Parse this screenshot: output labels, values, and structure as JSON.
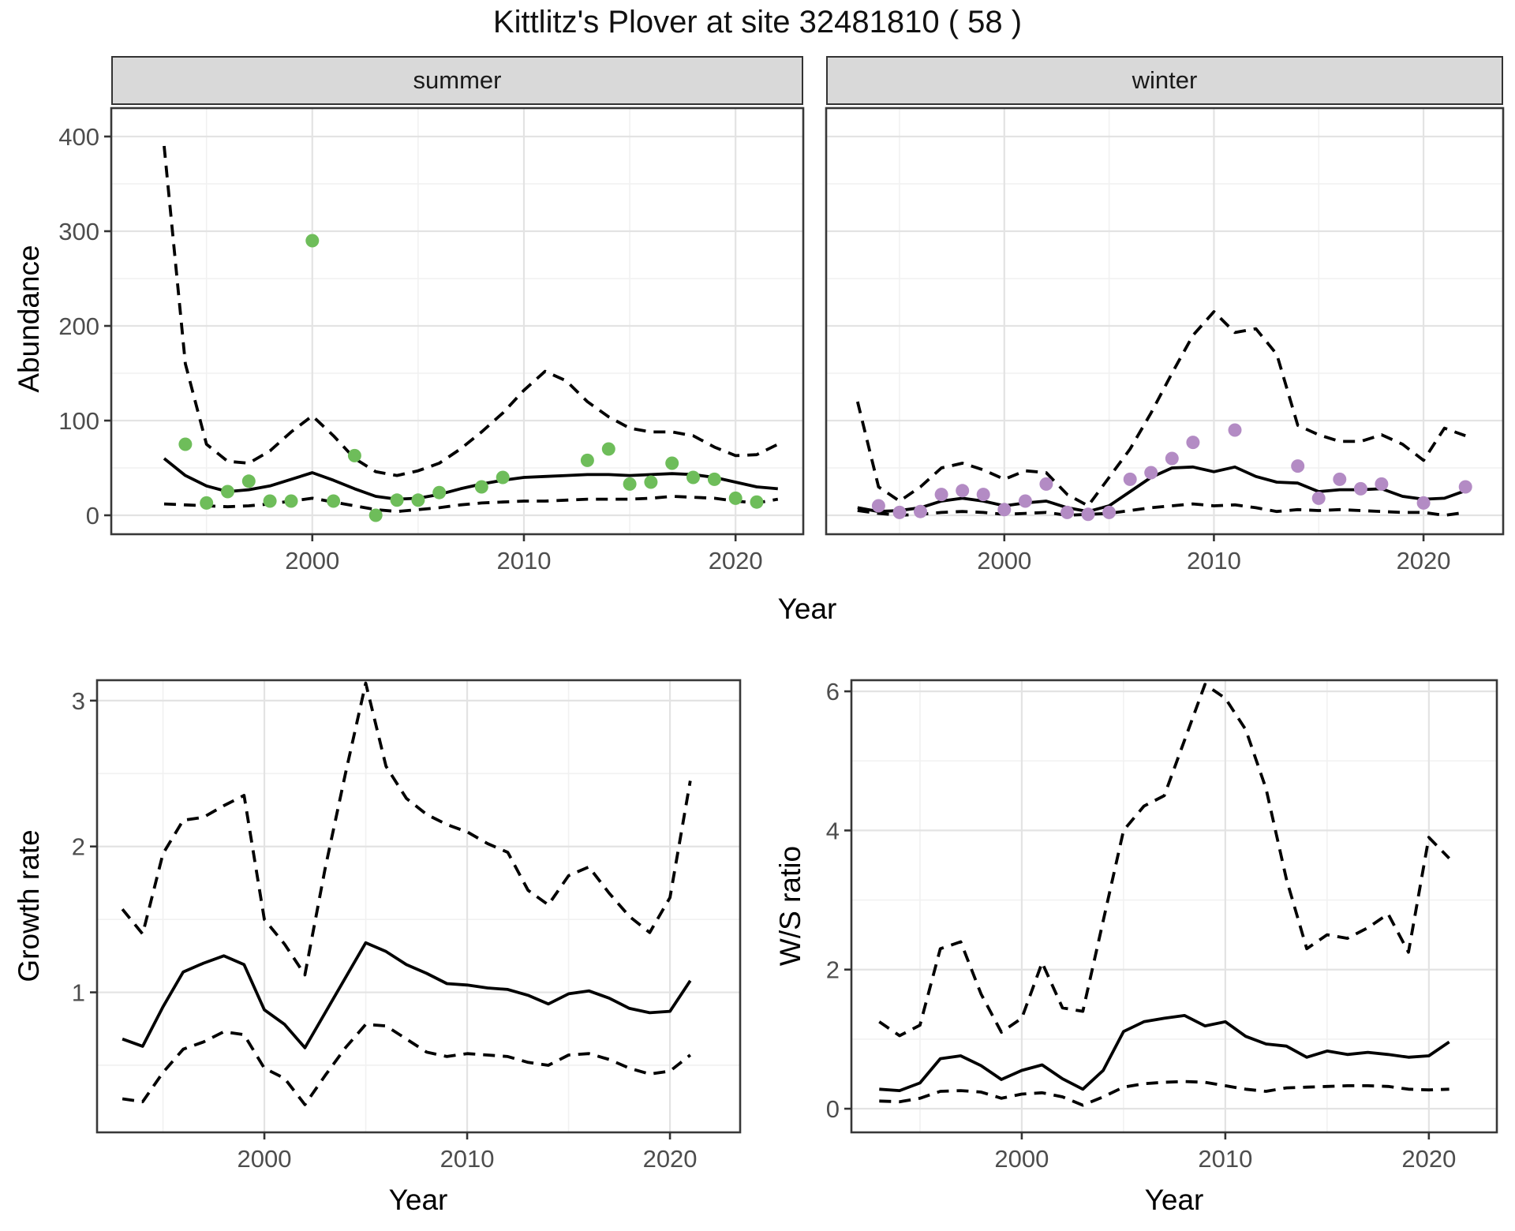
{
  "title": "Kittlitz's Plover at site 32481810 ( 58 )",
  "facets": {
    "summer": "summer",
    "winter": "winter"
  },
  "axis_titles": {
    "abundance": "Abundance",
    "year_top": "Year",
    "growth_rate": "Growth rate",
    "ws_ratio": "W/S ratio",
    "year_bottom_left": "Year",
    "year_bottom_right": "Year"
  },
  "colors": {
    "summer_point": "#6ebd5a",
    "winter_point": "#b38bc4",
    "line": "#000000",
    "strip_bg": "#d9d9d9",
    "panel_border": "#383838",
    "grid_major": "#e3e3e3",
    "grid_minor": "#f1f1f1",
    "tick_label": "#4d4d4d",
    "tick_mark": "#333333"
  },
  "chart_data": [
    {
      "id": "abundance-summer",
      "type": "line",
      "facet_label": "summer",
      "xlabel": "Year",
      "ylabel": "Abundance",
      "xlim": [
        1990.5,
        2023.2
      ],
      "ylim": [
        -20,
        430
      ],
      "grid": true,
      "legend_position": "none",
      "xticks": {
        "values": [
          2000,
          2010,
          2020
        ],
        "labels": [
          "2000",
          "2010",
          "2020"
        ]
      },
      "yticks": {
        "values": [
          0,
          100,
          200,
          300,
          400
        ],
        "labels": [
          "0",
          "100",
          "200",
          "300",
          "400"
        ]
      },
      "xminor": [
        1995,
        2005,
        2015
      ],
      "yminor": [
        50,
        150,
        250,
        350
      ],
      "years": [
        1993,
        1994,
        1995,
        1996,
        1997,
        1998,
        1999,
        2000,
        2001,
        2002,
        2003,
        2004,
        2005,
        2006,
        2007,
        2008,
        2009,
        2010,
        2011,
        2012,
        2013,
        2014,
        2015,
        2016,
        2017,
        2018,
        2019,
        2020,
        2021,
        2022
      ],
      "series": [
        {
          "name": "upper-ci",
          "style": "dashed",
          "values": [
            390,
            160,
            75,
            57,
            55,
            68,
            88,
            105,
            84,
            60,
            46,
            42,
            47,
            55,
            70,
            88,
            108,
            132,
            152,
            142,
            120,
            104,
            92,
            88,
            88,
            84,
            72,
            63,
            64,
            75
          ]
        },
        {
          "name": "lower-ci",
          "style": "dashed",
          "values": [
            12,
            11,
            10,
            9,
            10,
            12,
            15,
            18,
            14,
            10,
            6,
            4,
            6,
            8,
            11,
            13,
            14,
            15,
            15,
            16,
            17,
            17,
            17,
            18,
            20,
            19,
            18,
            15,
            13,
            17
          ]
        },
        {
          "name": "mean",
          "style": "solid",
          "values": [
            60,
            42,
            31,
            25,
            27,
            31,
            38,
            45,
            37,
            28,
            20,
            17,
            18,
            22,
            28,
            33,
            37,
            40,
            41,
            42,
            43,
            43,
            42,
            43,
            44,
            43,
            40,
            35,
            30,
            28
          ]
        }
      ],
      "points": {
        "name": "summer-observations",
        "color_key": "summer_point",
        "data": [
          [
            1994,
            75
          ],
          [
            1995,
            13
          ],
          [
            1996,
            25
          ],
          [
            1997,
            36
          ],
          [
            1998,
            15
          ],
          [
            1999,
            15
          ],
          [
            2000,
            290
          ],
          [
            2001,
            15
          ],
          [
            2002,
            63
          ],
          [
            2003,
            0
          ],
          [
            2004,
            16
          ],
          [
            2005,
            16
          ],
          [
            2006,
            24
          ],
          [
            2008,
            30
          ],
          [
            2009,
            40
          ],
          [
            2013,
            58
          ],
          [
            2014,
            70
          ],
          [
            2015,
            33
          ],
          [
            2016,
            35
          ],
          [
            2017,
            55
          ],
          [
            2018,
            40
          ],
          [
            2019,
            38
          ],
          [
            2020,
            18
          ],
          [
            2021,
            14
          ]
        ]
      }
    },
    {
      "id": "abundance-winter",
      "type": "line",
      "facet_label": "winter",
      "xlabel": "Year",
      "ylabel": "Abundance",
      "xlim": [
        1991.5,
        2023.8
      ],
      "ylim": [
        -20,
        430
      ],
      "grid": true,
      "legend_position": "none",
      "xticks": {
        "values": [
          2000,
          2010,
          2020
        ],
        "labels": [
          "2000",
          "2010",
          "2020"
        ]
      },
      "yticks": {
        "values": [
          0,
          100,
          200,
          300,
          400
        ],
        "labels": [
          "0",
          "100",
          "200",
          "300",
          "400"
        ],
        "hidden": true
      },
      "xminor": [
        1995,
        2005,
        2015
      ],
      "yminor": [
        50,
        150,
        250,
        350
      ],
      "years": [
        1993,
        1994,
        1995,
        1996,
        1997,
        1998,
        1999,
        2000,
        2001,
        2002,
        2003,
        2004,
        2005,
        2006,
        2007,
        2008,
        2009,
        2010,
        2011,
        2012,
        2013,
        2014,
        2015,
        2016,
        2017,
        2018,
        2019,
        2020,
        2021,
        2022
      ],
      "series": [
        {
          "name": "upper-ci",
          "style": "dashed",
          "values": [
            120,
            30,
            15,
            30,
            50,
            55,
            48,
            38,
            47,
            45,
            22,
            10,
            40,
            70,
            108,
            150,
            190,
            215,
            193,
            197,
            170,
            95,
            85,
            78,
            78,
            85,
            75,
            58,
            92,
            84
          ]
        },
        {
          "name": "lower-ci",
          "style": "dashed",
          "values": [
            5,
            2,
            0,
            1,
            3,
            4,
            3,
            1,
            2,
            3,
            0,
            1,
            2,
            5,
            8,
            10,
            12,
            10,
            11,
            8,
            4,
            6,
            5,
            6,
            5,
            4,
            3,
            3,
            0,
            3
          ]
        },
        {
          "name": "mean",
          "style": "solid",
          "values": [
            8,
            4,
            5,
            8,
            15,
            18,
            15,
            10,
            13,
            15,
            8,
            4,
            10,
            25,
            40,
            50,
            51,
            46,
            51,
            41,
            35,
            34,
            25,
            27,
            27,
            28,
            20,
            17,
            18,
            26
          ]
        }
      ],
      "points": {
        "name": "winter-observations",
        "color_key": "winter_point",
        "data": [
          [
            1994,
            10
          ],
          [
            1995,
            3
          ],
          [
            1996,
            4
          ],
          [
            1997,
            22
          ],
          [
            1998,
            26
          ],
          [
            1999,
            22
          ],
          [
            2000,
            6
          ],
          [
            2001,
            15
          ],
          [
            2002,
            33
          ],
          [
            2003,
            3
          ],
          [
            2004,
            1
          ],
          [
            2005,
            3
          ],
          [
            2006,
            38
          ],
          [
            2007,
            45
          ],
          [
            2008,
            60
          ],
          [
            2009,
            77
          ],
          [
            2011,
            90
          ],
          [
            2014,
            52
          ],
          [
            2015,
            18
          ],
          [
            2016,
            38
          ],
          [
            2017,
            28
          ],
          [
            2018,
            33
          ],
          [
            2020,
            13
          ],
          [
            2022,
            30
          ]
        ]
      }
    },
    {
      "id": "growth-rate",
      "type": "line",
      "xlabel": "Year",
      "ylabel": "Growth rate",
      "xlim": [
        1991.75,
        2023.46
      ],
      "ylim": [
        0.04,
        3.14
      ],
      "grid": true,
      "legend_position": "none",
      "xticks": {
        "values": [
          2000,
          2010,
          2020
        ],
        "labels": [
          "2000",
          "2010",
          "2020"
        ]
      },
      "yticks": {
        "values": [
          1,
          2,
          3
        ],
        "labels": [
          "1",
          "2",
          "3"
        ]
      },
      "xminor": [
        1995,
        2005,
        2015
      ],
      "yminor": [
        0.5,
        1.5,
        2.5
      ],
      "years": [
        1993,
        1994,
        1995,
        1996,
        1997,
        1998,
        1999,
        2000,
        2001,
        2002,
        2003,
        2004,
        2005,
        2006,
        2007,
        2008,
        2009,
        2010,
        2011,
        2012,
        2013,
        2014,
        2015,
        2016,
        2017,
        2018,
        2019,
        2020,
        2021
      ],
      "series": [
        {
          "name": "upper-ci",
          "style": "dashed",
          "values": [
            1.57,
            1.4,
            1.95,
            2.18,
            2.2,
            2.28,
            2.35,
            1.5,
            1.33,
            1.12,
            1.85,
            2.5,
            3.12,
            2.55,
            2.33,
            2.22,
            2.15,
            2.1,
            2.02,
            1.96,
            1.7,
            1.6,
            1.8,
            1.86,
            1.68,
            1.52,
            1.41,
            1.65,
            2.45
          ]
        },
        {
          "name": "lower-ci",
          "style": "dashed",
          "values": [
            0.27,
            0.25,
            0.45,
            0.61,
            0.66,
            0.73,
            0.71,
            0.48,
            0.41,
            0.23,
            0.43,
            0.62,
            0.78,
            0.77,
            0.68,
            0.59,
            0.56,
            0.58,
            0.57,
            0.56,
            0.52,
            0.5,
            0.57,
            0.58,
            0.54,
            0.48,
            0.44,
            0.46,
            0.57
          ]
        },
        {
          "name": "mean",
          "style": "solid",
          "values": [
            0.68,
            0.63,
            0.9,
            1.14,
            1.2,
            1.25,
            1.19,
            0.88,
            0.78,
            0.62,
            0.86,
            1.1,
            1.34,
            1.28,
            1.19,
            1.13,
            1.06,
            1.05,
            1.03,
            1.02,
            0.98,
            0.92,
            0.99,
            1.01,
            0.96,
            0.89,
            0.86,
            0.87,
            1.08
          ]
        }
      ]
    },
    {
      "id": "ws-ratio",
      "type": "line",
      "xlabel": "Year",
      "ylabel": "W/S ratio",
      "xlim": [
        1991.63,
        2023.34
      ],
      "ylim": [
        -0.34,
        6.16
      ],
      "grid": true,
      "legend_position": "none",
      "xticks": {
        "values": [
          2000,
          2010,
          2020
        ],
        "labels": [
          "2000",
          "2010",
          "2020"
        ]
      },
      "yticks": {
        "values": [
          0,
          2,
          4,
          6
        ],
        "labels": [
          "0",
          "2",
          "4",
          "6"
        ]
      },
      "xminor": [
        1995,
        2005,
        2015
      ],
      "yminor": [
        1,
        3,
        5
      ],
      "years": [
        1993,
        1994,
        1995,
        1996,
        1997,
        1998,
        1999,
        2000,
        2001,
        2002,
        2003,
        2004,
        2005,
        2006,
        2007,
        2008,
        2009,
        2010,
        2011,
        2012,
        2013,
        2014,
        2015,
        2016,
        2017,
        2018,
        2019,
        2020,
        2021
      ],
      "series": [
        {
          "name": "upper-ci",
          "style": "dashed",
          "values": [
            1.25,
            1.05,
            1.2,
            2.3,
            2.4,
            1.65,
            1.1,
            1.3,
            2.1,
            1.45,
            1.4,
            2.7,
            4.0,
            4.35,
            4.5,
            5.3,
            6.1,
            5.9,
            5.45,
            4.6,
            3.3,
            2.3,
            2.5,
            2.45,
            2.6,
            2.8,
            2.25,
            3.9,
            3.6
          ]
        },
        {
          "name": "lower-ci",
          "style": "dashed",
          "values": [
            0.11,
            0.1,
            0.15,
            0.25,
            0.26,
            0.24,
            0.15,
            0.21,
            0.23,
            0.17,
            0.05,
            0.17,
            0.31,
            0.36,
            0.38,
            0.39,
            0.38,
            0.33,
            0.28,
            0.25,
            0.3,
            0.31,
            0.32,
            0.33,
            0.33,
            0.32,
            0.28,
            0.27,
            0.28
          ]
        },
        {
          "name": "mean",
          "style": "solid",
          "values": [
            0.28,
            0.26,
            0.37,
            0.72,
            0.76,
            0.62,
            0.42,
            0.55,
            0.63,
            0.43,
            0.28,
            0.55,
            1.11,
            1.25,
            1.3,
            1.34,
            1.19,
            1.25,
            1.04,
            0.93,
            0.9,
            0.74,
            0.83,
            0.78,
            0.81,
            0.78,
            0.74,
            0.76,
            0.96
          ]
        }
      ]
    }
  ]
}
